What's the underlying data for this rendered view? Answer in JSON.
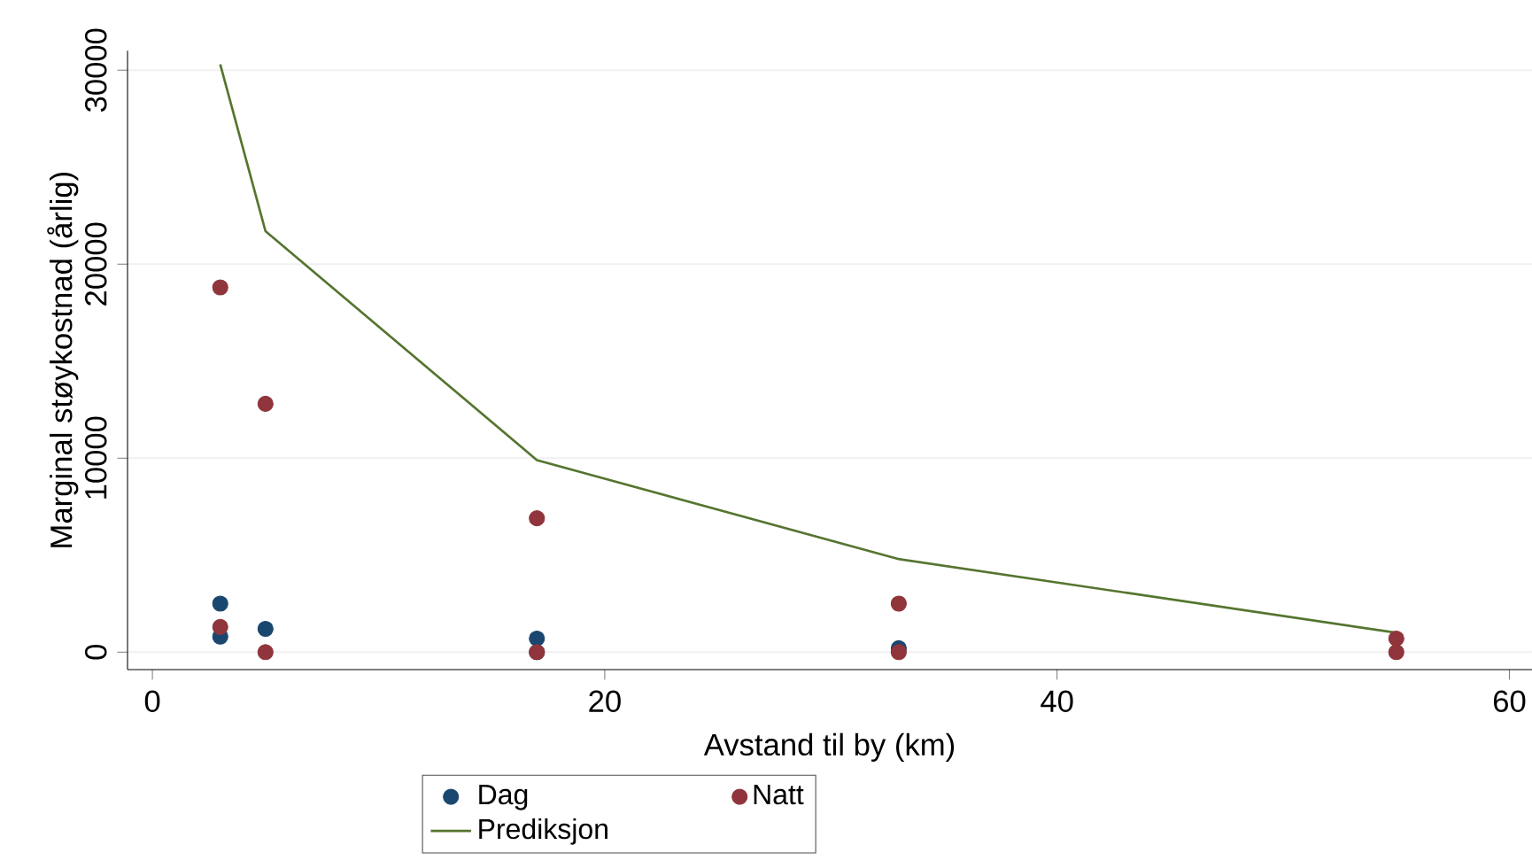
{
  "chart_data": {
    "type": "scatter",
    "xlabel": "Avstand til by (km)",
    "ylabel": "Marginal støykostnad (årlig)",
    "series": [
      {
        "name": "Dag",
        "color": "#1a476f",
        "marker": "circle",
        "x": [
          3,
          3,
          5,
          17,
          17,
          33
        ],
        "values": [
          2500,
          800,
          1200,
          700,
          0,
          200
        ]
      },
      {
        "name": "Natt",
        "color": "#90353b",
        "marker": "circle",
        "x": [
          3,
          3,
          5,
          5,
          17,
          17,
          33,
          33,
          55,
          55
        ],
        "values": [
          18800,
          1300,
          12800,
          0,
          6900,
          0,
          2500,
          0,
          700,
          0
        ]
      },
      {
        "name": "Prediksjon",
        "color": "#55752f",
        "type": "line",
        "marker": "none",
        "x": [
          3,
          5,
          17,
          33,
          55
        ],
        "values": [
          30300,
          21700,
          9900,
          4800,
          1000
        ]
      }
    ],
    "xlim": [
      -1.1,
      61
    ],
    "ylim": [
      -900,
      31000
    ],
    "xticks": [
      0,
      20,
      40,
      60
    ],
    "yticks": [
      0,
      10000,
      20000,
      30000
    ],
    "grid": "y",
    "legend": "bottom"
  }
}
